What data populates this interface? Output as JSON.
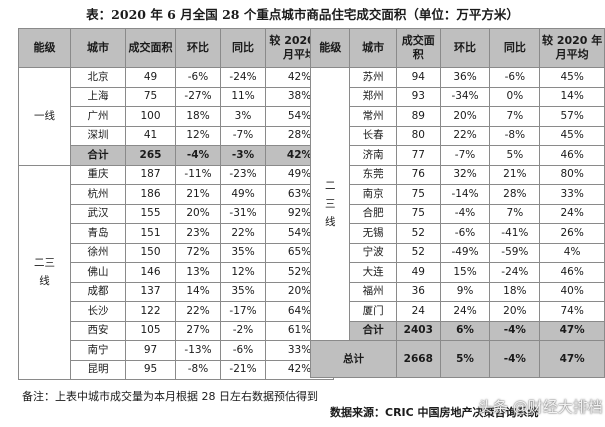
{
  "title": "表：2020 年 6 月全国 28 个重点城市商品住宅成交面积（单位：万平方米）",
  "headers": {
    "tier": "能级",
    "city": "城市",
    "area": "成交面积",
    "mom": "环比",
    "yoy": "同比",
    "vs2020": "较 2020 年月平均"
  },
  "tier_labels": {
    "tier1": "一线",
    "tier23_left": "二三线",
    "tier23_right": "二三线"
  },
  "left": {
    "tier1": [
      {
        "city": "北京",
        "area": "49",
        "mom": "-6%",
        "yoy": "-24%",
        "vs": "42%"
      },
      {
        "city": "上海",
        "area": "75",
        "mom": "-27%",
        "yoy": "11%",
        "vs": "38%"
      },
      {
        "city": "广州",
        "area": "100",
        "mom": "18%",
        "yoy": "3%",
        "vs": "54%"
      },
      {
        "city": "深圳",
        "area": "41",
        "mom": "12%",
        "yoy": "-7%",
        "vs": "28%"
      }
    ],
    "tier1_total": {
      "city": "合计",
      "area": "265",
      "mom": "-4%",
      "yoy": "-3%",
      "vs": "42%"
    },
    "tier23": [
      {
        "city": "重庆",
        "area": "187",
        "mom": "-11%",
        "yoy": "-23%",
        "vs": "49%"
      },
      {
        "city": "杭州",
        "area": "186",
        "mom": "21%",
        "yoy": "49%",
        "vs": "63%"
      },
      {
        "city": "武汉",
        "area": "155",
        "mom": "20%",
        "yoy": "-31%",
        "vs": "92%"
      },
      {
        "city": "青岛",
        "area": "151",
        "mom": "23%",
        "yoy": "22%",
        "vs": "54%"
      },
      {
        "city": "徐州",
        "area": "150",
        "mom": "72%",
        "yoy": "35%",
        "vs": "65%"
      },
      {
        "city": "佛山",
        "area": "146",
        "mom": "13%",
        "yoy": "12%",
        "vs": "52%"
      },
      {
        "city": "成都",
        "area": "137",
        "mom": "14%",
        "yoy": "35%",
        "vs": "20%"
      },
      {
        "city": "长沙",
        "area": "122",
        "mom": "22%",
        "yoy": "-17%",
        "vs": "64%"
      },
      {
        "city": "西安",
        "area": "105",
        "mom": "27%",
        "yoy": "-2%",
        "vs": "61%"
      },
      {
        "city": "南宁",
        "area": "97",
        "mom": "-13%",
        "yoy": "-6%",
        "vs": "33%"
      },
      {
        "city": "昆明",
        "area": "95",
        "mom": "-8%",
        "yoy": "-21%",
        "vs": "42%"
      }
    ]
  },
  "right": {
    "tier23": [
      {
        "city": "苏州",
        "area": "94",
        "mom": "36%",
        "yoy": "-6%",
        "vs": "45%"
      },
      {
        "city": "郑州",
        "area": "93",
        "mom": "-34%",
        "yoy": "0%",
        "vs": "14%"
      },
      {
        "city": "常州",
        "area": "89",
        "mom": "20%",
        "yoy": "7%",
        "vs": "57%"
      },
      {
        "city": "长春",
        "area": "80",
        "mom": "22%",
        "yoy": "-8%",
        "vs": "45%"
      },
      {
        "city": "济南",
        "area": "77",
        "mom": "-7%",
        "yoy": "5%",
        "vs": "46%"
      },
      {
        "city": "东莞",
        "area": "76",
        "mom": "32%",
        "yoy": "21%",
        "vs": "80%"
      },
      {
        "city": "南京",
        "area": "75",
        "mom": "-14%",
        "yoy": "28%",
        "vs": "33%"
      },
      {
        "city": "合肥",
        "area": "75",
        "mom": "-4%",
        "yoy": "7%",
        "vs": "24%"
      },
      {
        "city": "无锡",
        "area": "52",
        "mom": "-6%",
        "yoy": "-41%",
        "vs": "26%"
      },
      {
        "city": "宁波",
        "area": "52",
        "mom": "-49%",
        "yoy": "-59%",
        "vs": "4%"
      },
      {
        "city": "大连",
        "area": "49",
        "mom": "15%",
        "yoy": "-24%",
        "vs": "46%"
      },
      {
        "city": "福州",
        "area": "36",
        "mom": "9%",
        "yoy": "18%",
        "vs": "40%"
      },
      {
        "city": "厦门",
        "area": "24",
        "mom": "24%",
        "yoy": "20%",
        "vs": "74%"
      }
    ],
    "tier23_total": {
      "city": "合计",
      "area": "2403",
      "mom": "6%",
      "yoy": "-4%",
      "vs": "47%"
    },
    "grand_total": {
      "label": "总计",
      "area": "2668",
      "mom": "5%",
      "yoy": "-4%",
      "vs": "47%"
    }
  },
  "footnote": "备注：上表中城市成交量为本月根据 28 日左右数据预估得到",
  "source": "数据来源：CRIC 中国房地产决策咨询系统",
  "watermark": "头条 @财经大排档"
}
